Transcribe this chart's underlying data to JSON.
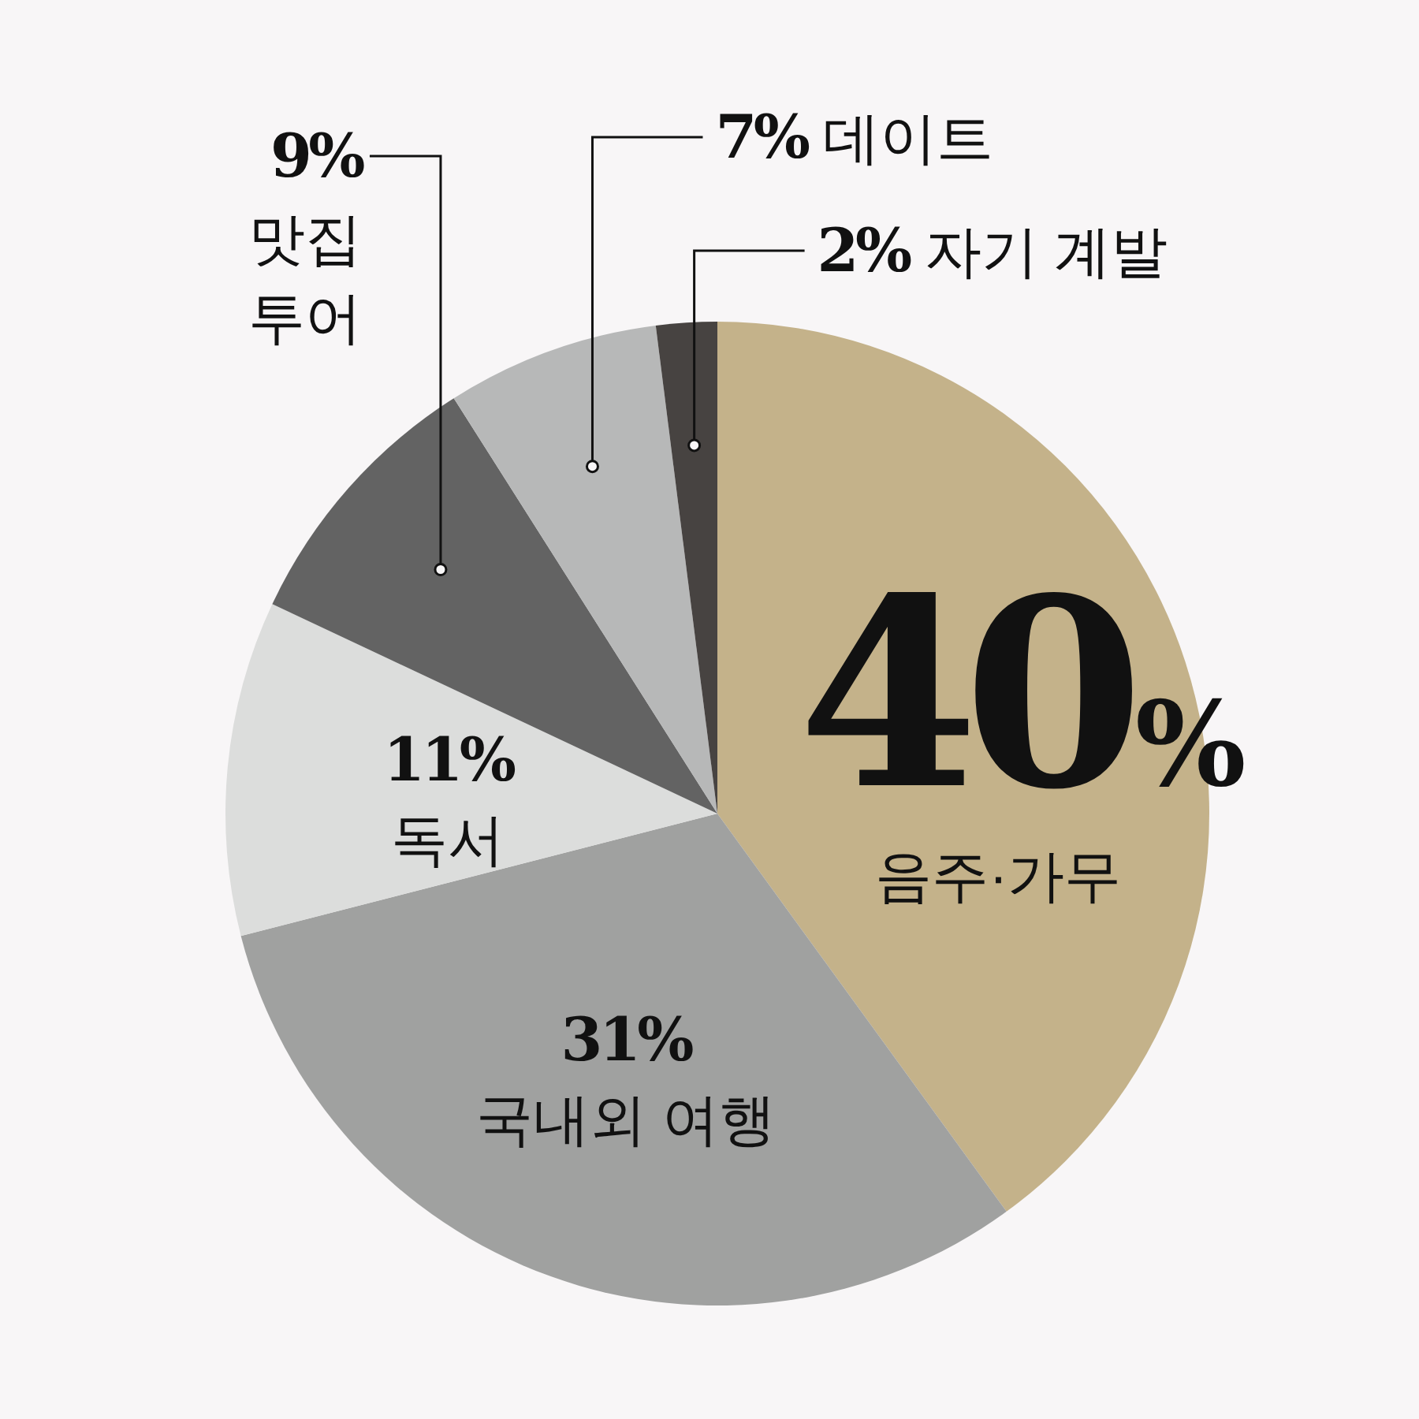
{
  "chart_data": {
    "type": "pie",
    "categories": [
      "음주·가무",
      "국내외 여행",
      "독서",
      "맛집 투어",
      "데이트",
      "자기 계발"
    ],
    "values": [
      40,
      31,
      11,
      9,
      7,
      2
    ],
    "colors": [
      "#c4b28a",
      "#a0a1a0",
      "#dcdddc",
      "#636363",
      "#b7b8b8",
      "#474341"
    ],
    "value_labels": [
      "40%",
      "31%",
      "11%",
      "9%",
      "7%",
      "2%"
    ]
  }
}
